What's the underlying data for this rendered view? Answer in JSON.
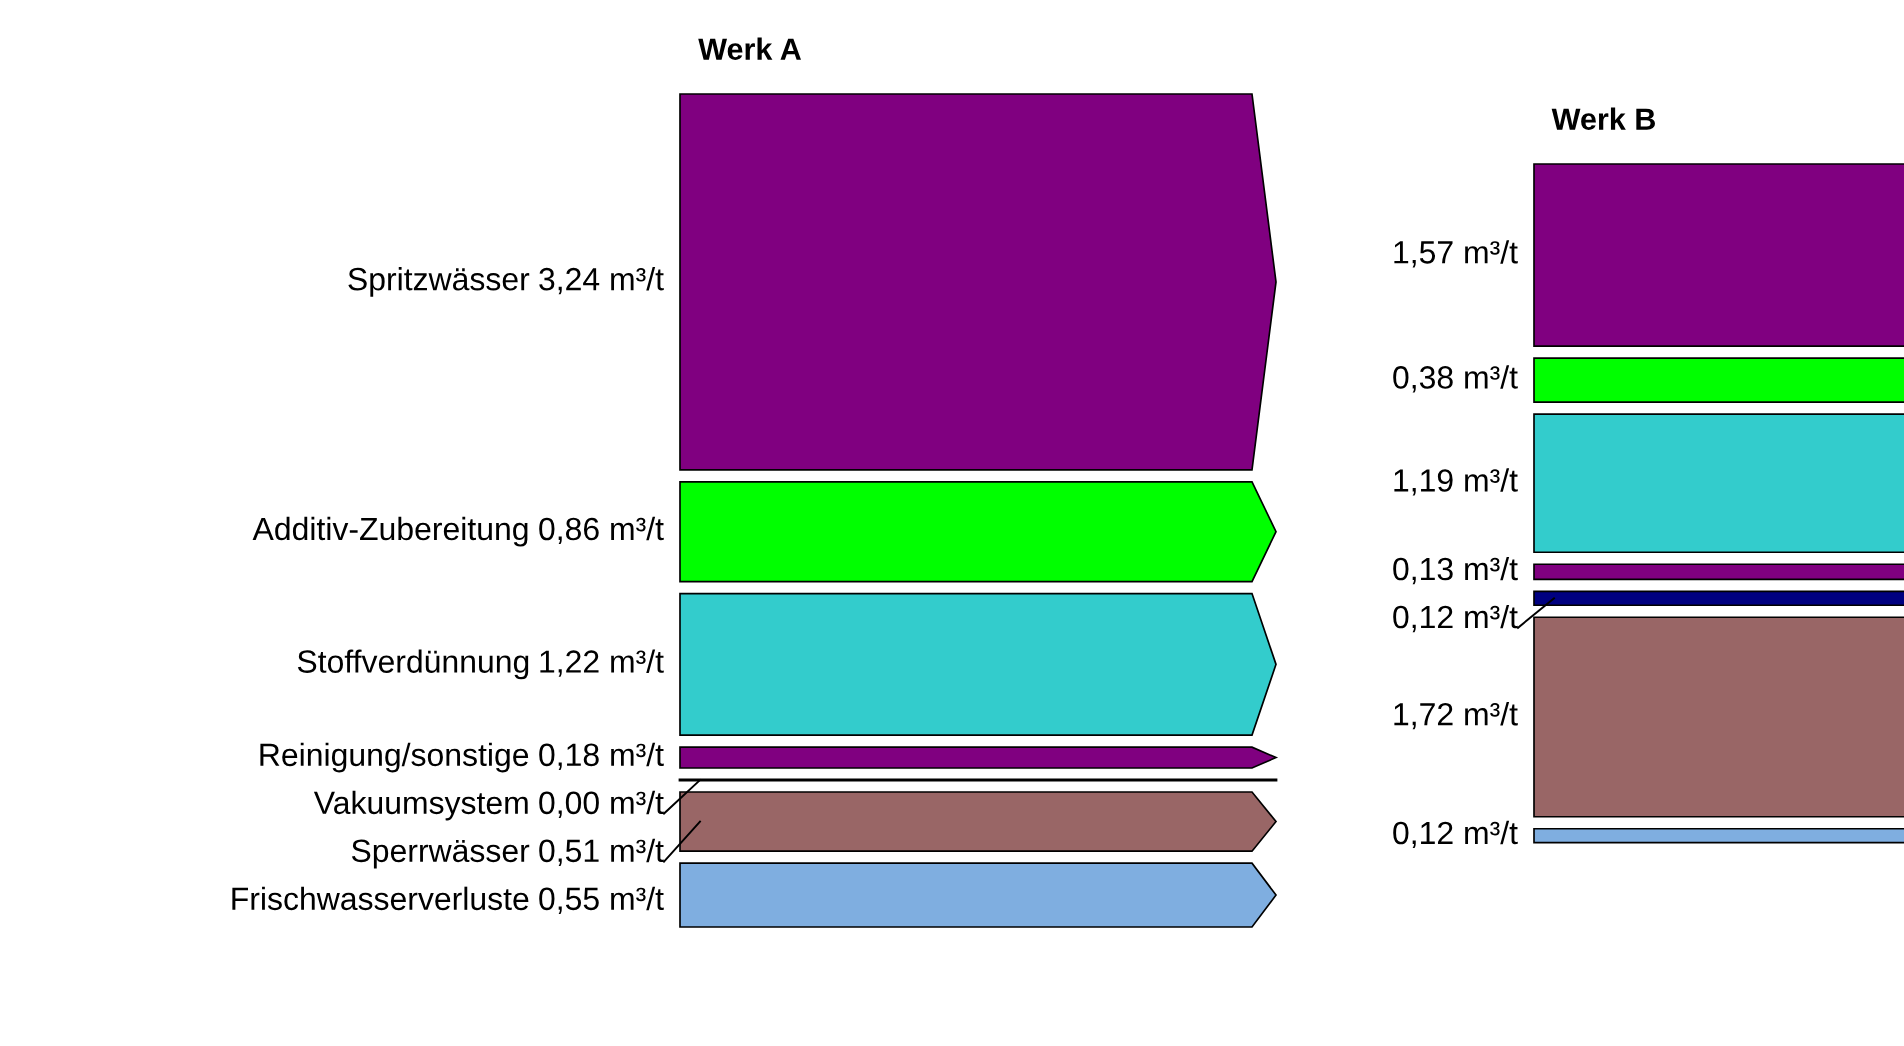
{
  "chart_data": {
    "type": "other",
    "categories": [
      "Spritzwässer",
      "Additiv-Zubereitung",
      "Stoffverdünnung",
      "Reinigung/sonstige",
      "Vakuumsystem",
      "Sperrwässer",
      "Frischwasserverluste"
    ],
    "colors": [
      "#800080",
      "#00ff00",
      "#33cccc",
      "#800080",
      "#000080",
      "#996666",
      "#7faee0"
    ],
    "series": [
      {
        "name": "Werk A",
        "values": [
          3.24,
          0.86,
          1.22,
          0.18,
          0.0,
          0.51,
          0.55
        ],
        "value_labels": [
          "3,24 m³/t",
          "0,86 m³/t",
          "1,22 m³/t",
          "0,18 m³/t",
          "0,00 m³/t",
          "0,51 m³/t",
          "0,55 m³/t"
        ]
      },
      {
        "name": "Werk B",
        "values": [
          1.57,
          0.38,
          1.19,
          0.13,
          0.12,
          1.72,
          0.12
        ],
        "value_labels": [
          "1,57 m³/t",
          "0,38 m³/t",
          "1,19 m³/t",
          "0,13 m³/t",
          "0,12 m³/t",
          "1,72 m³/t",
          "0,12 m³/t"
        ]
      }
    ],
    "legend": false
  }
}
